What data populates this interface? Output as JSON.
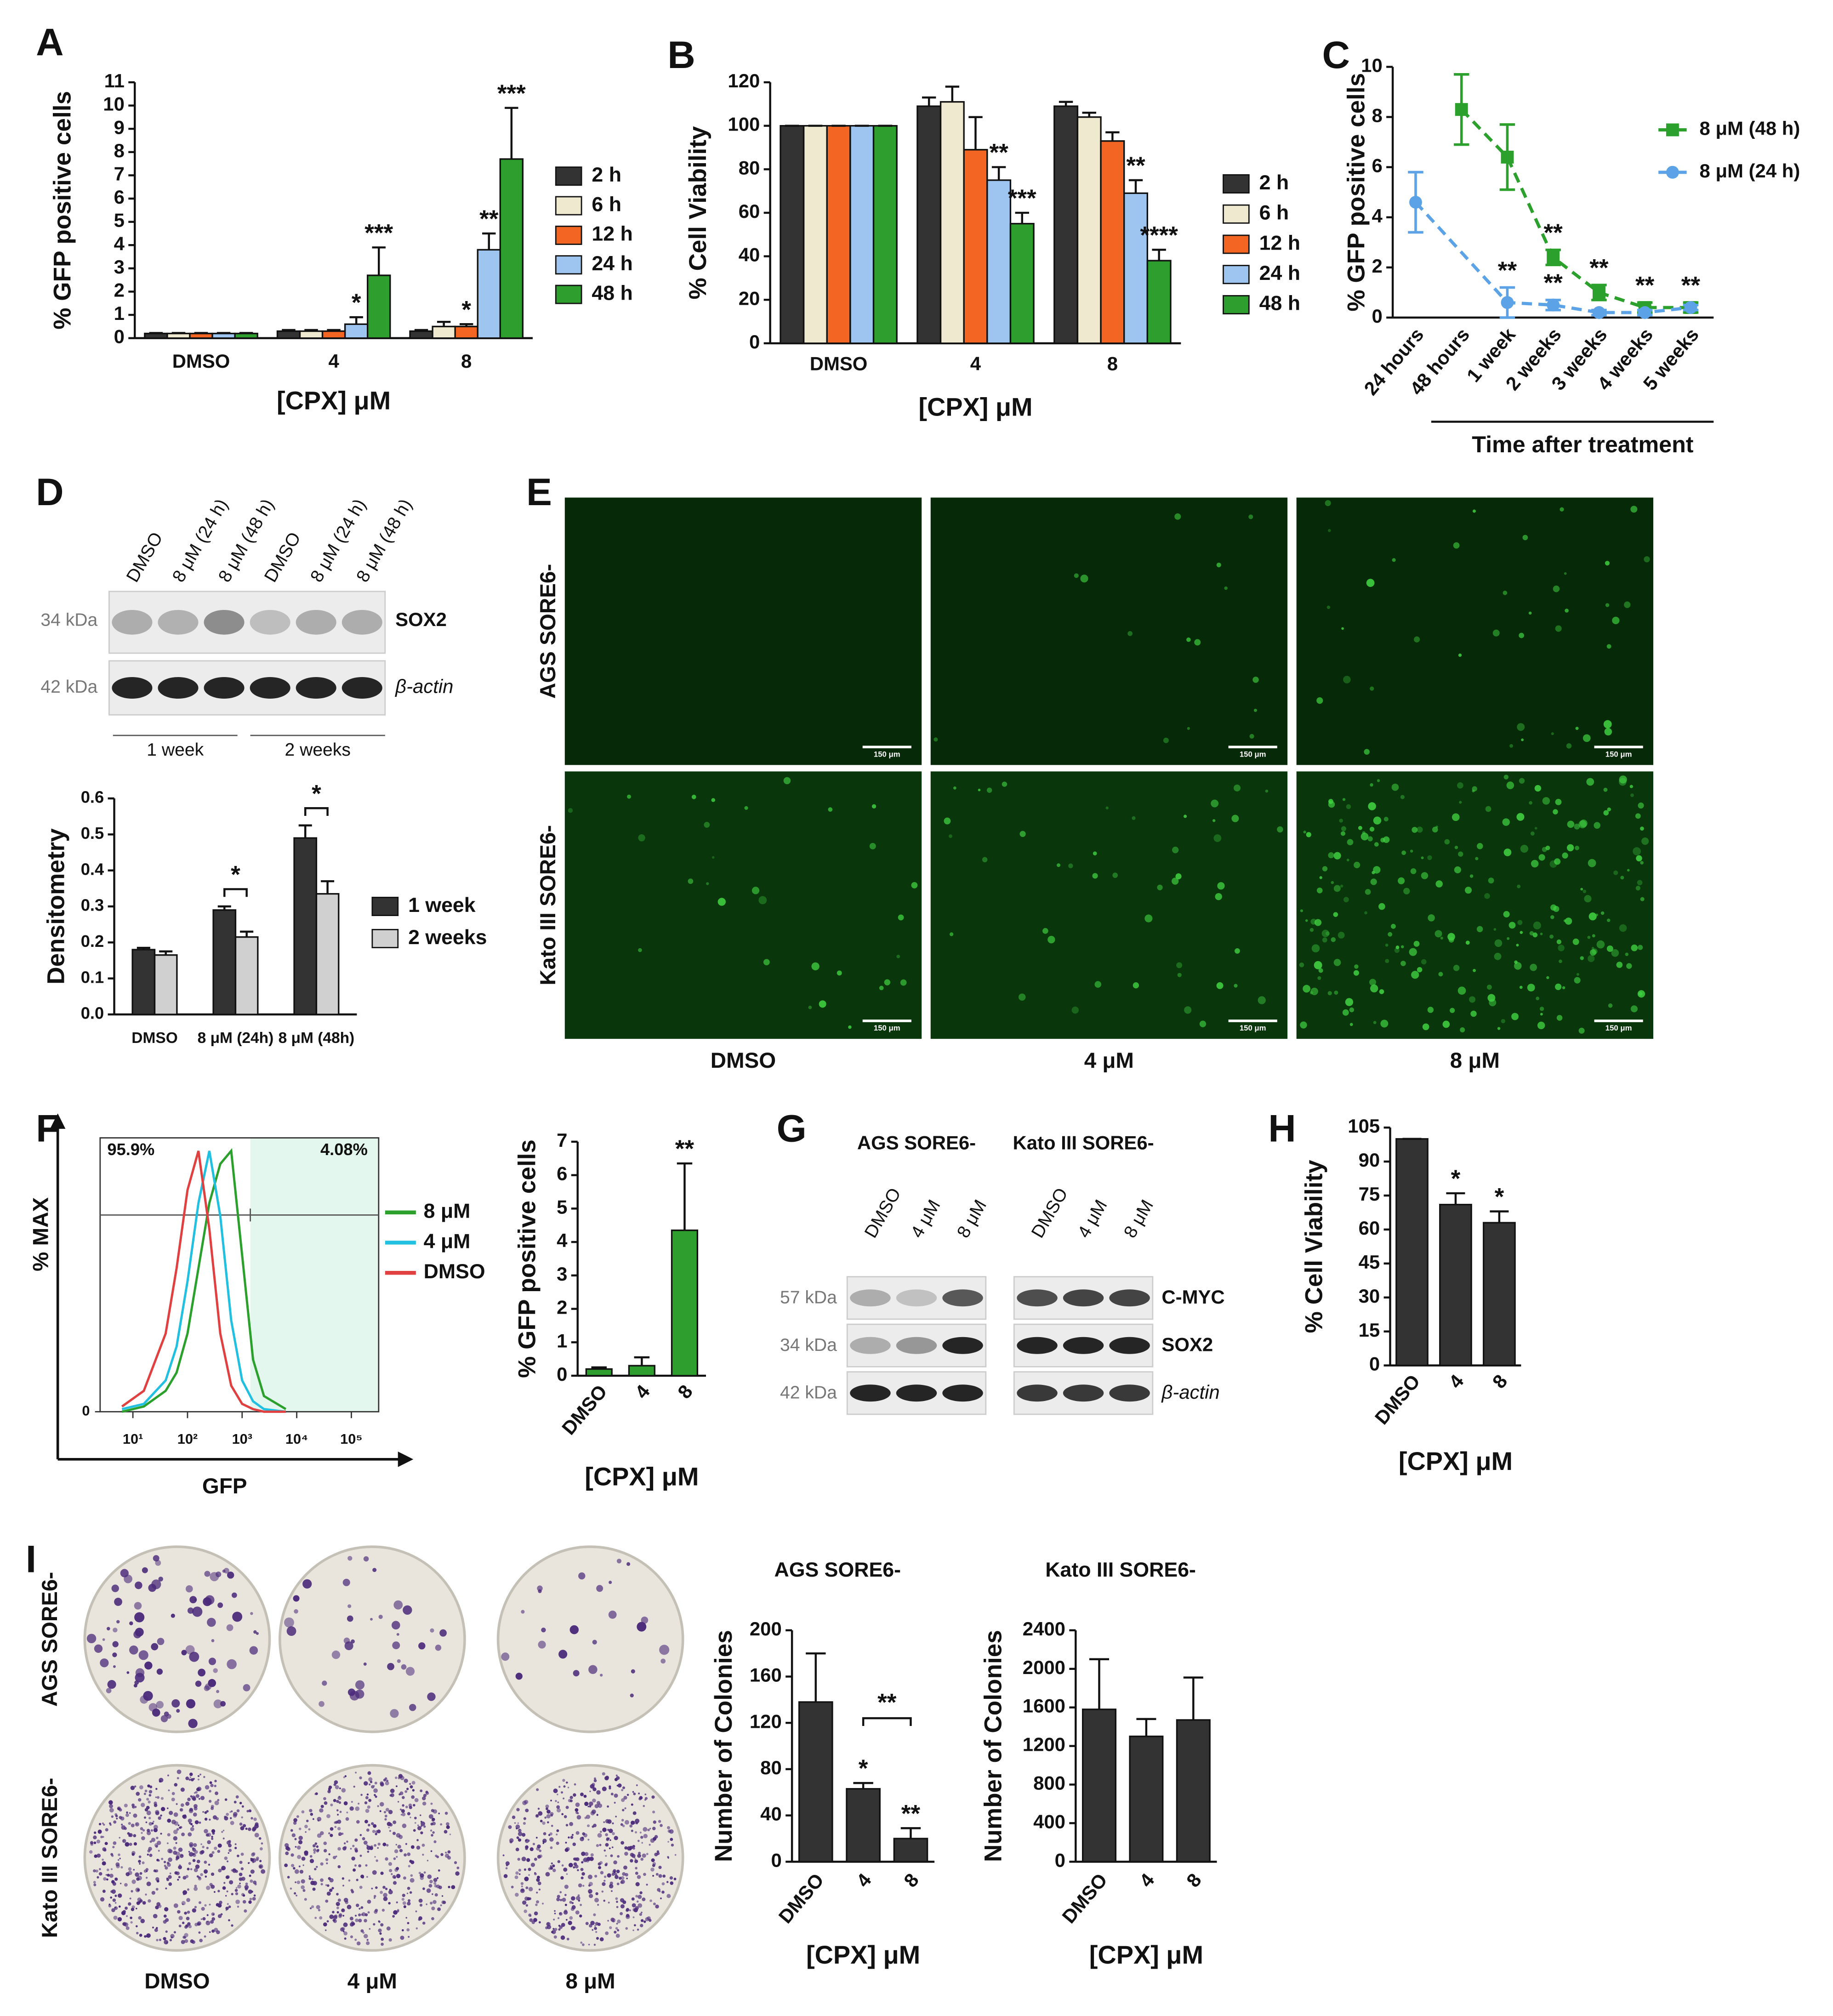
{
  "panel_labels": [
    "A",
    "B",
    "C",
    "D",
    "E",
    "F",
    "G",
    "H",
    "I"
  ],
  "blot_d": {
    "lanes": [
      "DMSO",
      "8 μM (24 h)",
      "8 μM (48 h)"
    ],
    "markers": [
      "34 kDa",
      "42 kDa"
    ],
    "proteins": [
      "SOX2",
      "β-actin"
    ],
    "groups": [
      "1 week",
      "2 weeks"
    ]
  },
  "images_e": {
    "rows": [
      "AGS SORE6-",
      "Kato III SORE6-"
    ],
    "columns": [
      "DMSO",
      "4 μM",
      "8 μM"
    ],
    "scale_bar": "150 μm"
  },
  "blot_g": {
    "cell_lines": [
      "AGS SORE6-",
      "Kato III SORE6-"
    ],
    "lanes": [
      "DMSO",
      "4 μM",
      "8 μM"
    ],
    "markers": [
      "57 kDa",
      "34 kDa",
      "42 kDa"
    ],
    "proteins": [
      "C-MYC",
      "SOX2",
      "β-actin"
    ]
  },
  "images_i": {
    "rows": [
      "AGS SORE6-",
      "Kato III SORE6-"
    ],
    "columns": [
      "DMSO",
      "4 μM",
      "8 μM"
    ]
  },
  "chart_data": [
    {
      "type": "bar",
      "ylabel": "% GFP positive cells",
      "xlabel": "[CPX] μM",
      "categories": [
        "DMSO",
        "4",
        "8"
      ],
      "ylim": [
        0,
        11
      ],
      "yticks": [
        0,
        1,
        2,
        3,
        4,
        5,
        6,
        7,
        8,
        9,
        10,
        11
      ],
      "series": [
        {
          "name": "2 h",
          "color": "#333333",
          "values": [
            0.2,
            0.3,
            0.3
          ],
          "errors": [
            0.02,
            0.05,
            0.05
          ],
          "annotations": [
            null,
            null,
            null
          ]
        },
        {
          "name": "6 h",
          "color": "#efe9d0",
          "values": [
            0.2,
            0.3,
            0.5
          ],
          "errors": [
            0.02,
            0.05,
            0.2
          ],
          "annotations": [
            null,
            null,
            null
          ]
        },
        {
          "name": "12 h",
          "color": "#f26522",
          "values": [
            0.2,
            0.3,
            0.5
          ],
          "errors": [
            0.02,
            0.05,
            0.1
          ],
          "annotations": [
            null,
            null,
            "*"
          ]
        },
        {
          "name": "24 h",
          "color": "#9ec5ef",
          "values": [
            0.2,
            0.6,
            3.8
          ],
          "errors": [
            0.02,
            0.3,
            0.7
          ],
          "annotations": [
            null,
            "*",
            "**"
          ]
        },
        {
          "name": "48 h",
          "color": "#2e9e2e",
          "values": [
            0.2,
            2.7,
            7.7
          ],
          "errors": [
            0.02,
            1.2,
            2.2
          ],
          "annotations": [
            null,
            "***",
            "***"
          ]
        }
      ]
    },
    {
      "type": "bar",
      "ylabel": "% Cell Viability",
      "xlabel": "[CPX] μM",
      "categories": [
        "DMSO",
        "4",
        "8"
      ],
      "ylim": [
        0,
        120
      ],
      "yticks": [
        0,
        20,
        40,
        60,
        80,
        100,
        120
      ],
      "series": [
        {
          "name": "2 h",
          "color": "#333333",
          "values": [
            100,
            109,
            109
          ],
          "errors": [
            0,
            4,
            2
          ],
          "annotations": [
            null,
            null,
            null
          ]
        },
        {
          "name": "6 h",
          "color": "#efe9d0",
          "values": [
            100,
            111,
            104
          ],
          "errors": [
            0,
            7,
            2
          ],
          "annotations": [
            null,
            null,
            null
          ]
        },
        {
          "name": "12 h",
          "color": "#f26522",
          "values": [
            100,
            89,
            93
          ],
          "errors": [
            0,
            15,
            4
          ],
          "annotations": [
            null,
            null,
            null
          ]
        },
        {
          "name": "24 h",
          "color": "#9ec5ef",
          "values": [
            100,
            75,
            69
          ],
          "errors": [
            0,
            6,
            6
          ],
          "annotations": [
            null,
            "**",
            "**"
          ]
        },
        {
          "name": "48 h",
          "color": "#2e9e2e",
          "values": [
            100,
            55,
            38
          ],
          "errors": [
            0,
            5,
            5
          ],
          "annotations": [
            null,
            "***",
            "****"
          ]
        }
      ]
    },
    {
      "type": "line",
      "ylabel": "% GFP positive cells",
      "xlabel": "Time after treatment",
      "categories": [
        "24 hours",
        "48 hours",
        "1 week",
        "2 weeks",
        "3 weeks",
        "4 weeks",
        "5 weeks"
      ],
      "ylim": [
        0,
        10
      ],
      "yticks": [
        0,
        2,
        4,
        6,
        8,
        10
      ],
      "series": [
        {
          "name": "8 μM (48 h)",
          "color": "#2ca02c",
          "marker": "square",
          "dashed": true,
          "x": [
            "48 hours",
            "1 week",
            "2 weeks",
            "3 weeks",
            "4 weeks",
            "5 weeks"
          ],
          "values": [
            8.3,
            6.4,
            2.4,
            1.0,
            0.4,
            0.4
          ],
          "errors": [
            1.4,
            1.3,
            0.3,
            0.3,
            0.2,
            0.2
          ],
          "annotations": [
            null,
            null,
            "**",
            "**",
            "**",
            "**"
          ]
        },
        {
          "name": "8 μM (24 h)",
          "color": "#5ba3e6",
          "marker": "circle",
          "dashed": true,
          "x": [
            "24 hours",
            "1 week",
            "2 weeks",
            "3 weeks",
            "4 weeks",
            "5 weeks"
          ],
          "values": [
            4.6,
            0.6,
            0.5,
            0.2,
            0.2,
            0.4
          ],
          "errors": [
            1.2,
            0.6,
            0.2,
            0.1,
            0.1,
            0.1
          ],
          "annotations": [
            null,
            "**",
            "**",
            null,
            null,
            null
          ]
        }
      ]
    },
    {
      "type": "bar",
      "ylabel": "Densitometry",
      "categories": [
        "DMSO",
        "8 μM (24h)",
        "8 μM (48h)"
      ],
      "ylim": [
        0,
        0.6
      ],
      "yticks": [
        {
          "value": 0,
          "label": "0.0"
        },
        0.1,
        0.2,
        0.3,
        0.4,
        0.5,
        0.6
      ],
      "series": [
        {
          "name": "1 week",
          "color": "#333333",
          "values": [
            0.18,
            0.29,
            0.49
          ],
          "errors": [
            0.005,
            0.01,
            0.035
          ]
        },
        {
          "name": "2 weeks",
          "color": "#d0d0d0",
          "values": [
            0.165,
            0.215,
            0.335
          ],
          "errors": [
            0.01,
            0.015,
            0.035
          ]
        }
      ],
      "group_annotations": [
        null,
        "*",
        "*"
      ]
    },
    {
      "type": "density",
      "ylabel": "% MAX",
      "xlabel": "GFP",
      "xlim": [
        0.4,
        5.5
      ],
      "ylim": [
        0,
        105
      ],
      "yticks": [
        0
      ],
      "xticks": [
        {
          "value": 1,
          "label": "10¹"
        },
        {
          "value": 2,
          "label": "10²"
        },
        {
          "value": 3,
          "label": "10³"
        },
        {
          "value": 4,
          "label": "10⁴"
        },
        {
          "value": 5,
          "label": "10⁵"
        }
      ],
      "gate_labels": [
        "95.9%",
        "4.08%"
      ],
      "x": [
        0.8,
        1.2,
        1.6,
        1.8,
        2.0,
        2.2,
        2.4,
        2.6,
        2.8,
        3.0,
        3.2,
        3.4,
        3.8
      ],
      "series": [
        {
          "name": "8 μM",
          "color": "#2ca02c",
          "values": [
            0,
            2,
            8,
            15,
            30,
            55,
            80,
            95,
            100,
            60,
            20,
            6,
            1
          ]
        },
        {
          "name": "4 μM",
          "color": "#22c0e0",
          "values": [
            1,
            3,
            12,
            25,
            50,
            80,
            100,
            75,
            35,
            12,
            4,
            1,
            0
          ]
        },
        {
          "name": "DMSO",
          "color": "#e04040",
          "values": [
            2,
            8,
            30,
            55,
            85,
            100,
            70,
            30,
            10,
            3,
            1,
            0,
            0
          ]
        }
      ]
    },
    {
      "type": "bar",
      "ylabel": "% GFP positive cells",
      "xlabel": "[CPX] μM",
      "categories": [
        "DMSO",
        "4",
        "8"
      ],
      "ylim": [
        0,
        7
      ],
      "yticks": [
        0,
        1,
        2,
        3,
        4,
        5,
        6,
        7
      ],
      "series": [
        {
          "color": "#2e9e2e",
          "values": [
            0.2,
            0.3,
            4.35
          ],
          "errors": [
            0.05,
            0.25,
            2.0
          ],
          "annotations": [
            null,
            null,
            "**"
          ]
        }
      ]
    },
    {
      "type": "bar",
      "ylabel": "% Cell Viability",
      "xlabel": "[CPX] μM",
      "categories": [
        "DMSO",
        "4",
        "8"
      ],
      "ylim": [
        0,
        105
      ],
      "yticks": [
        0,
        15,
        30,
        45,
        60,
        75,
        90,
        105
      ],
      "series": [
        {
          "color": "#333333",
          "values": [
            100,
            71,
            63
          ],
          "errors": [
            0,
            5,
            5
          ],
          "annotations": [
            null,
            "*",
            "*"
          ]
        }
      ]
    },
    {
      "type": "bar",
      "title": "AGS SORE6-",
      "ylabel": "Number of Colonies",
      "xlabel": "[CPX] μM",
      "categories": [
        "DMSO",
        "4",
        "8"
      ],
      "ylim": [
        0,
        200
      ],
      "yticks": [
        0,
        40,
        80,
        120,
        160,
        200
      ],
      "series": [
        {
          "color": "#333333",
          "values": [
            138,
            63,
            20
          ],
          "errors": [
            42,
            5,
            9
          ],
          "annotations": [
            null,
            "*",
            "**"
          ]
        }
      ],
      "pair_annotation": {
        "categories": [
          "4",
          "8"
        ],
        "label": "**"
      }
    },
    {
      "type": "bar",
      "title": "Kato III SORE6-",
      "ylabel": "Number of Colonies",
      "xlabel": "[CPX] μM",
      "categories": [
        "DMSO",
        "4",
        "8"
      ],
      "ylim": [
        0,
        2400
      ],
      "yticks": [
        0,
        400,
        800,
        1200,
        1600,
        2000,
        2400
      ],
      "series": [
        {
          "color": "#333333",
          "values": [
            1580,
            1300,
            1470
          ],
          "errors": [
            520,
            180,
            440
          ]
        }
      ]
    }
  ]
}
